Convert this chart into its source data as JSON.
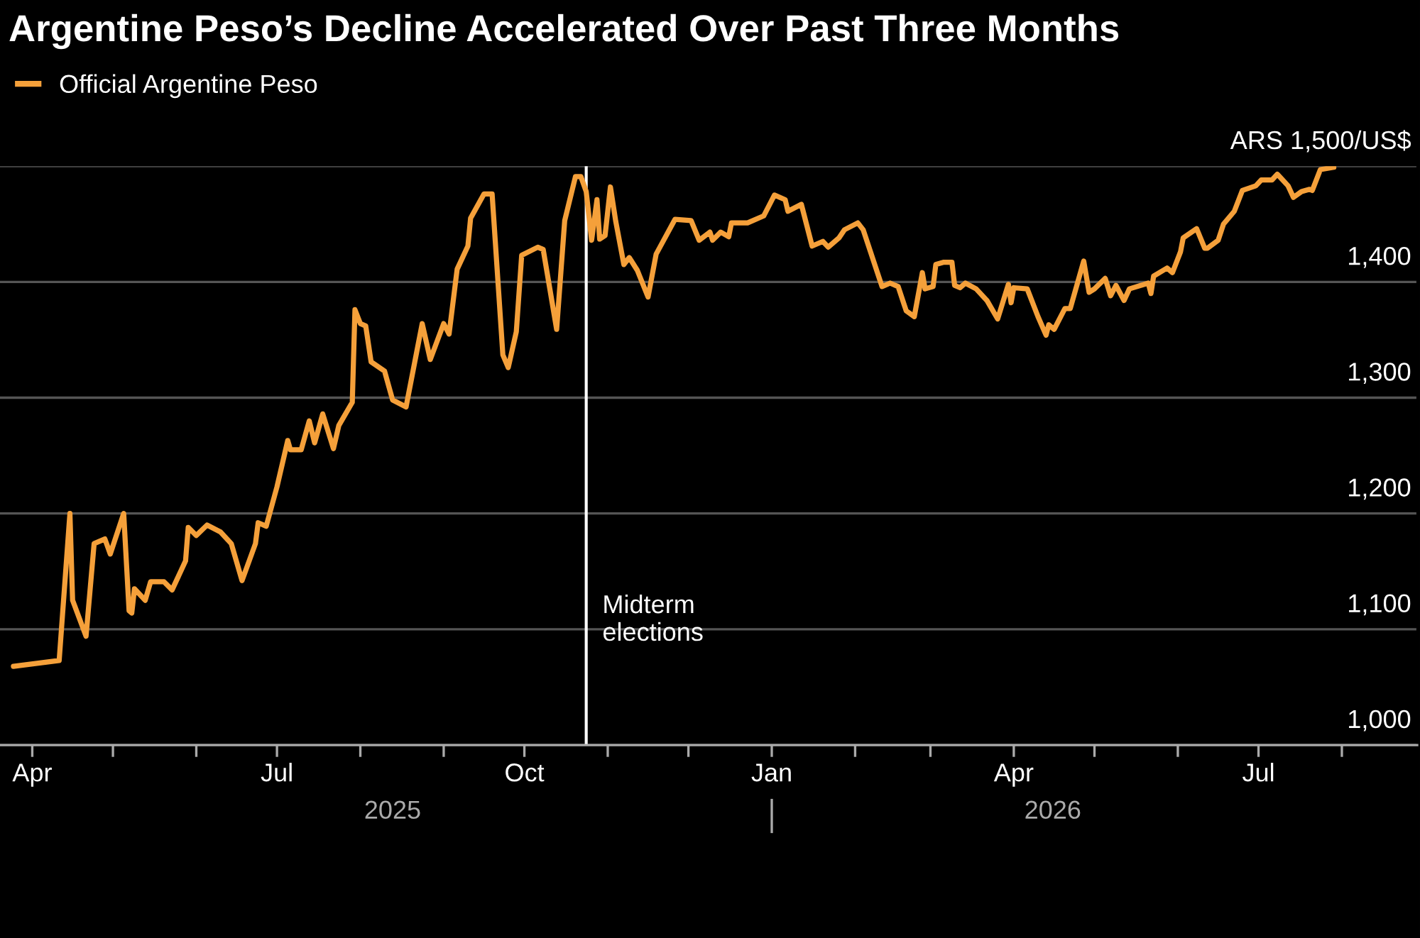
{
  "chart_data": {
    "type": "line",
    "title": "Argentine Peso’s Decline Accelerated Over Past Three Months",
    "x": [
      "2025-03-25",
      "2025-04-11",
      "2025-04-15",
      "2025-04-16",
      "2025-04-21",
      "2025-04-24",
      "2025-04-28",
      "2025-04-30",
      "2025-05-05",
      "2025-05-07",
      "2025-05-08",
      "2025-05-09",
      "2025-05-13",
      "2025-05-15",
      "2025-05-20",
      "2025-05-23",
      "2025-05-28",
      "2025-05-29",
      "2025-06-01",
      "2025-06-05",
      "2025-06-10",
      "2025-06-14",
      "2025-06-18",
      "2025-06-23",
      "2025-06-24",
      "2025-06-27",
      "2025-07-01",
      "2025-07-05",
      "2025-07-06",
      "2025-07-10",
      "2025-07-13",
      "2025-07-15",
      "2025-07-18",
      "2025-07-22",
      "2025-07-24",
      "2025-07-29",
      "2025-07-30",
      "2025-08-01",
      "2025-08-03",
      "2025-08-05",
      "2025-08-10",
      "2025-08-13",
      "2025-08-18",
      "2025-08-24",
      "2025-08-27",
      "2025-09-01",
      "2025-09-03",
      "2025-09-06",
      "2025-09-10",
      "2025-09-11",
      "2025-09-16",
      "2025-09-19",
      "2025-09-23",
      "2025-09-25",
      "2025-09-28",
      "2025-09-30",
      "2025-10-06",
      "2025-10-08",
      "2025-10-13",
      "2025-10-16",
      "2025-10-20",
      "2025-10-22",
      "2025-10-24",
      "2025-10-26",
      "2025-10-28",
      "2025-10-29",
      "2025-10-31",
      "2025-11-02",
      "2025-11-04",
      "2025-11-07",
      "2025-11-09",
      "2025-11-12",
      "2025-11-16",
      "2025-11-19",
      "2025-11-26",
      "2025-12-02",
      "2025-12-05",
      "2025-12-09",
      "2025-12-10",
      "2025-12-13",
      "2025-12-16",
      "2025-12-17",
      "2025-12-23",
      "2025-12-29",
      "2026-01-02",
      "2026-01-06",
      "2026-01-07",
      "2026-01-12",
      "2026-01-16",
      "2026-01-20",
      "2026-01-22",
      "2026-01-26",
      "2026-01-28",
      "2026-02-02",
      "2026-02-04",
      "2026-02-11",
      "2026-02-14",
      "2026-02-17",
      "2026-02-20",
      "2026-02-23",
      "2026-02-26",
      "2026-02-27",
      "2026-03-02",
      "2026-03-03",
      "2026-03-06",
      "2026-03-09",
      "2026-03-10",
      "2026-03-12",
      "2026-03-14",
      "2026-03-18",
      "2026-03-22",
      "2026-03-26",
      "2026-03-30",
      "2026-03-31",
      "2026-04-01",
      "2026-04-06",
      "2026-04-10",
      "2026-04-13",
      "2026-04-14",
      "2026-04-16",
      "2026-04-20",
      "2026-04-22",
      "2026-04-27",
      "2026-04-29",
      "2026-05-01",
      "2026-05-05",
      "2026-05-07",
      "2026-05-09",
      "2026-05-12",
      "2026-05-14",
      "2026-05-21",
      "2026-05-22",
      "2026-05-23",
      "2026-05-28",
      "2026-05-30",
      "2026-06-02",
      "2026-06-03",
      "2026-06-08",
      "2026-06-11",
      "2026-06-12",
      "2026-06-16",
      "2026-06-18",
      "2026-06-22",
      "2026-06-25",
      "2026-06-30",
      "2026-07-02",
      "2026-07-06",
      "2026-07-08",
      "2026-07-12",
      "2026-07-14",
      "2026-07-17",
      "2026-07-20",
      "2026-07-21",
      "2026-07-24",
      "2026-07-29"
    ],
    "series": [
      {
        "name": "Official Argentine Peso",
        "color": "#f5a03a",
        "values": [
          1068,
          1073,
          1200,
          1125,
          1094,
          1174,
          1178,
          1165,
          1200,
          1116,
          1114,
          1135,
          1125,
          1141,
          1141,
          1134,
          1159,
          1188,
          1181,
          1190,
          1184,
          1174,
          1142,
          1174,
          1192,
          1189,
          1223,
          1263,
          1255,
          1255,
          1280,
          1261,
          1286,
          1256,
          1276,
          1296,
          1376,
          1364,
          1362,
          1331,
          1323,
          1298,
          1292,
          1364,
          1333,
          1364,
          1355,
          1411,
          1431,
          1455,
          1476,
          1476,
          1337,
          1326,
          1357,
          1423,
          1430,
          1428,
          1359,
          1453,
          1491,
          1491,
          1478,
          1436,
          1471,
          1437,
          1440,
          1482,
          1452,
          1415,
          1421,
          1410,
          1387,
          1424,
          1454,
          1453,
          1436,
          1443,
          1436,
          1443,
          1439,
          1451,
          1451,
          1457,
          1475,
          1471,
          1461,
          1467,
          1431,
          1435,
          1430,
          1438,
          1445,
          1451,
          1445,
          1396,
          1399,
          1396,
          1375,
          1370,
          1408,
          1394,
          1396,
          1415,
          1417,
          1417,
          1397,
          1395,
          1399,
          1394,
          1384,
          1368,
          1398,
          1382,
          1395,
          1394,
          1370,
          1354,
          1363,
          1359,
          1377,
          1377,
          1418,
          1391,
          1394,
          1403,
          1388,
          1397,
          1384,
          1394,
          1399,
          1390,
          1405,
          1412,
          1408,
          1426,
          1438,
          1446,
          1429,
          1429,
          1436,
          1450,
          1461,
          1479,
          1483,
          1488,
          1488,
          1493,
          1483,
          1473,
          1478,
          1480,
          1479,
          1497,
          1499
        ]
      }
    ],
    "xlim": [
      "2025-03-20",
      "2026-08-29"
    ],
    "xticks": [
      {
        "value": "2025-04-01",
        "label": "Apr"
      },
      {
        "value": "2025-05-01",
        "label": null
      },
      {
        "value": "2025-06-01",
        "label": null
      },
      {
        "value": "2025-07-01",
        "label": "Jul"
      },
      {
        "value": "2025-08-01",
        "label": null
      },
      {
        "value": "2025-09-01",
        "label": null
      },
      {
        "value": "2025-10-01",
        "label": "Oct"
      },
      {
        "value": "2025-11-01",
        "label": null
      },
      {
        "value": "2025-12-01",
        "label": null
      },
      {
        "value": "2026-01-01",
        "label": "Jan"
      },
      {
        "value": "2026-02-01",
        "label": null
      },
      {
        "value": "2026-03-01",
        "label": null
      },
      {
        "value": "2026-04-01",
        "label": "Apr"
      },
      {
        "value": "2026-05-01",
        "label": null
      },
      {
        "value": "2026-06-01",
        "label": null
      },
      {
        "value": "2026-07-01",
        "label": "Jul"
      },
      {
        "value": "2026-08-01",
        "label": null
      }
    ],
    "ylim": [
      1000,
      1500
    ],
    "yticks": [
      {
        "value": 1000,
        "label": "1,000"
      },
      {
        "value": 1100,
        "label": "1,100"
      },
      {
        "value": 1200,
        "label": "1,200"
      },
      {
        "value": 1300,
        "label": "1,300"
      },
      {
        "value": 1400,
        "label": "1,400"
      },
      {
        "value": 1500,
        "label": "ARS 1,500/US$"
      }
    ],
    "grid": "y",
    "legend": "top left",
    "ref_lines": [
      {
        "axis": "x",
        "value": "2025-10-24",
        "label": "Midterm\nelections",
        "color": "#ffffff"
      }
    ],
    "annotations": [
      "2025",
      "2026"
    ]
  }
}
